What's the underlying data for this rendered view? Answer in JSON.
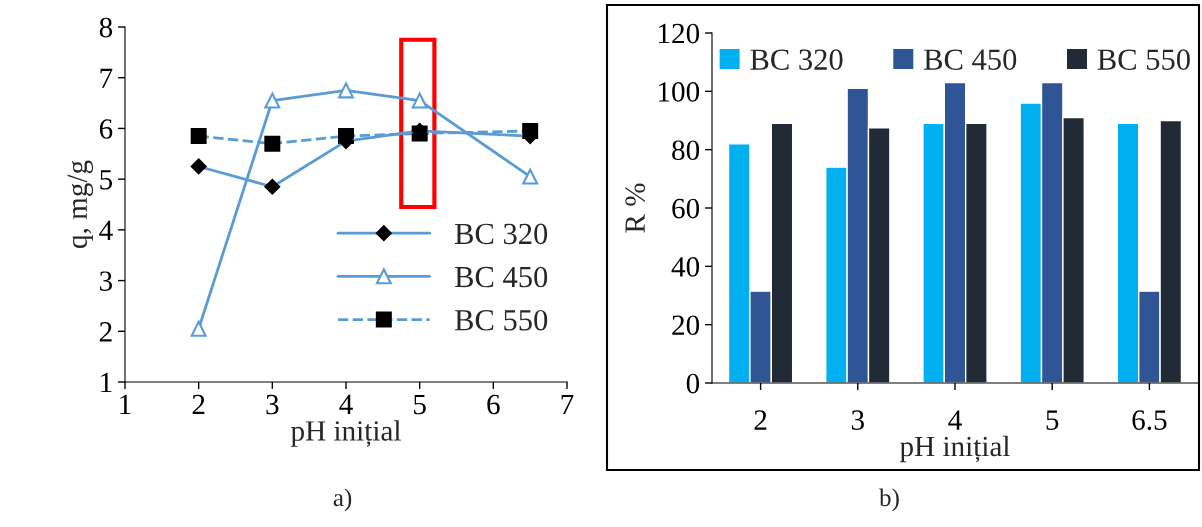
{
  "chart_data": [
    {
      "type": "line",
      "xlabel": "pH inițial",
      "ylabel": "q, mg/g",
      "xlim": [
        1,
        7
      ],
      "ylim": [
        1,
        8
      ],
      "xticks": [
        1,
        2,
        3,
        4,
        5,
        6,
        7
      ],
      "yticks": [
        1,
        2,
        3,
        4,
        5,
        6,
        7,
        8
      ],
      "grid": false,
      "legend": "bottom right",
      "x": [
        2,
        3,
        4,
        5,
        6.5
      ],
      "series": [
        {
          "name": "BC 320",
          "color": "#5b9bd5",
          "marker": "diamond",
          "line_style": "solid",
          "values": [
            5.25,
            4.85,
            5.75,
            5.95,
            5.85
          ]
        },
        {
          "name": "BC 450",
          "color": "#5b9bd5",
          "marker": "triangle",
          "line_style": "solid",
          "values": [
            2.05,
            6.55,
            6.75,
            6.55,
            5.05
          ]
        },
        {
          "name": "BC 550",
          "color": "#5b9bd5",
          "marker": "square",
          "line_style": "dashed",
          "values": [
            5.85,
            5.7,
            5.85,
            5.9,
            5.95
          ]
        }
      ],
      "annotations": [
        "a)"
      ]
    },
    {
      "type": "bar",
      "xlabel": "pH inițial",
      "ylabel": "R %",
      "ylim": [
        0,
        120
      ],
      "yticks": [
        0,
        20,
        40,
        60,
        80,
        100,
        120
      ],
      "grid": false,
      "legend": "top",
      "categories": [
        "2",
        "3",
        "4",
        "5",
        "6.5"
      ],
      "series": [
        {
          "name": "BC 320",
          "color": "#00b0f0",
          "values": [
            82,
            74,
            89,
            96,
            89
          ]
        },
        {
          "name": "BC 450",
          "color": "#2f5597",
          "values": [
            31.5,
            101,
            103,
            103,
            31.5
          ]
        },
        {
          "name": "BC 550",
          "color": "#222a35",
          "values": [
            89,
            87.5,
            89,
            91,
            90
          ]
        }
      ],
      "annotations": [
        "b)"
      ]
    }
  ]
}
